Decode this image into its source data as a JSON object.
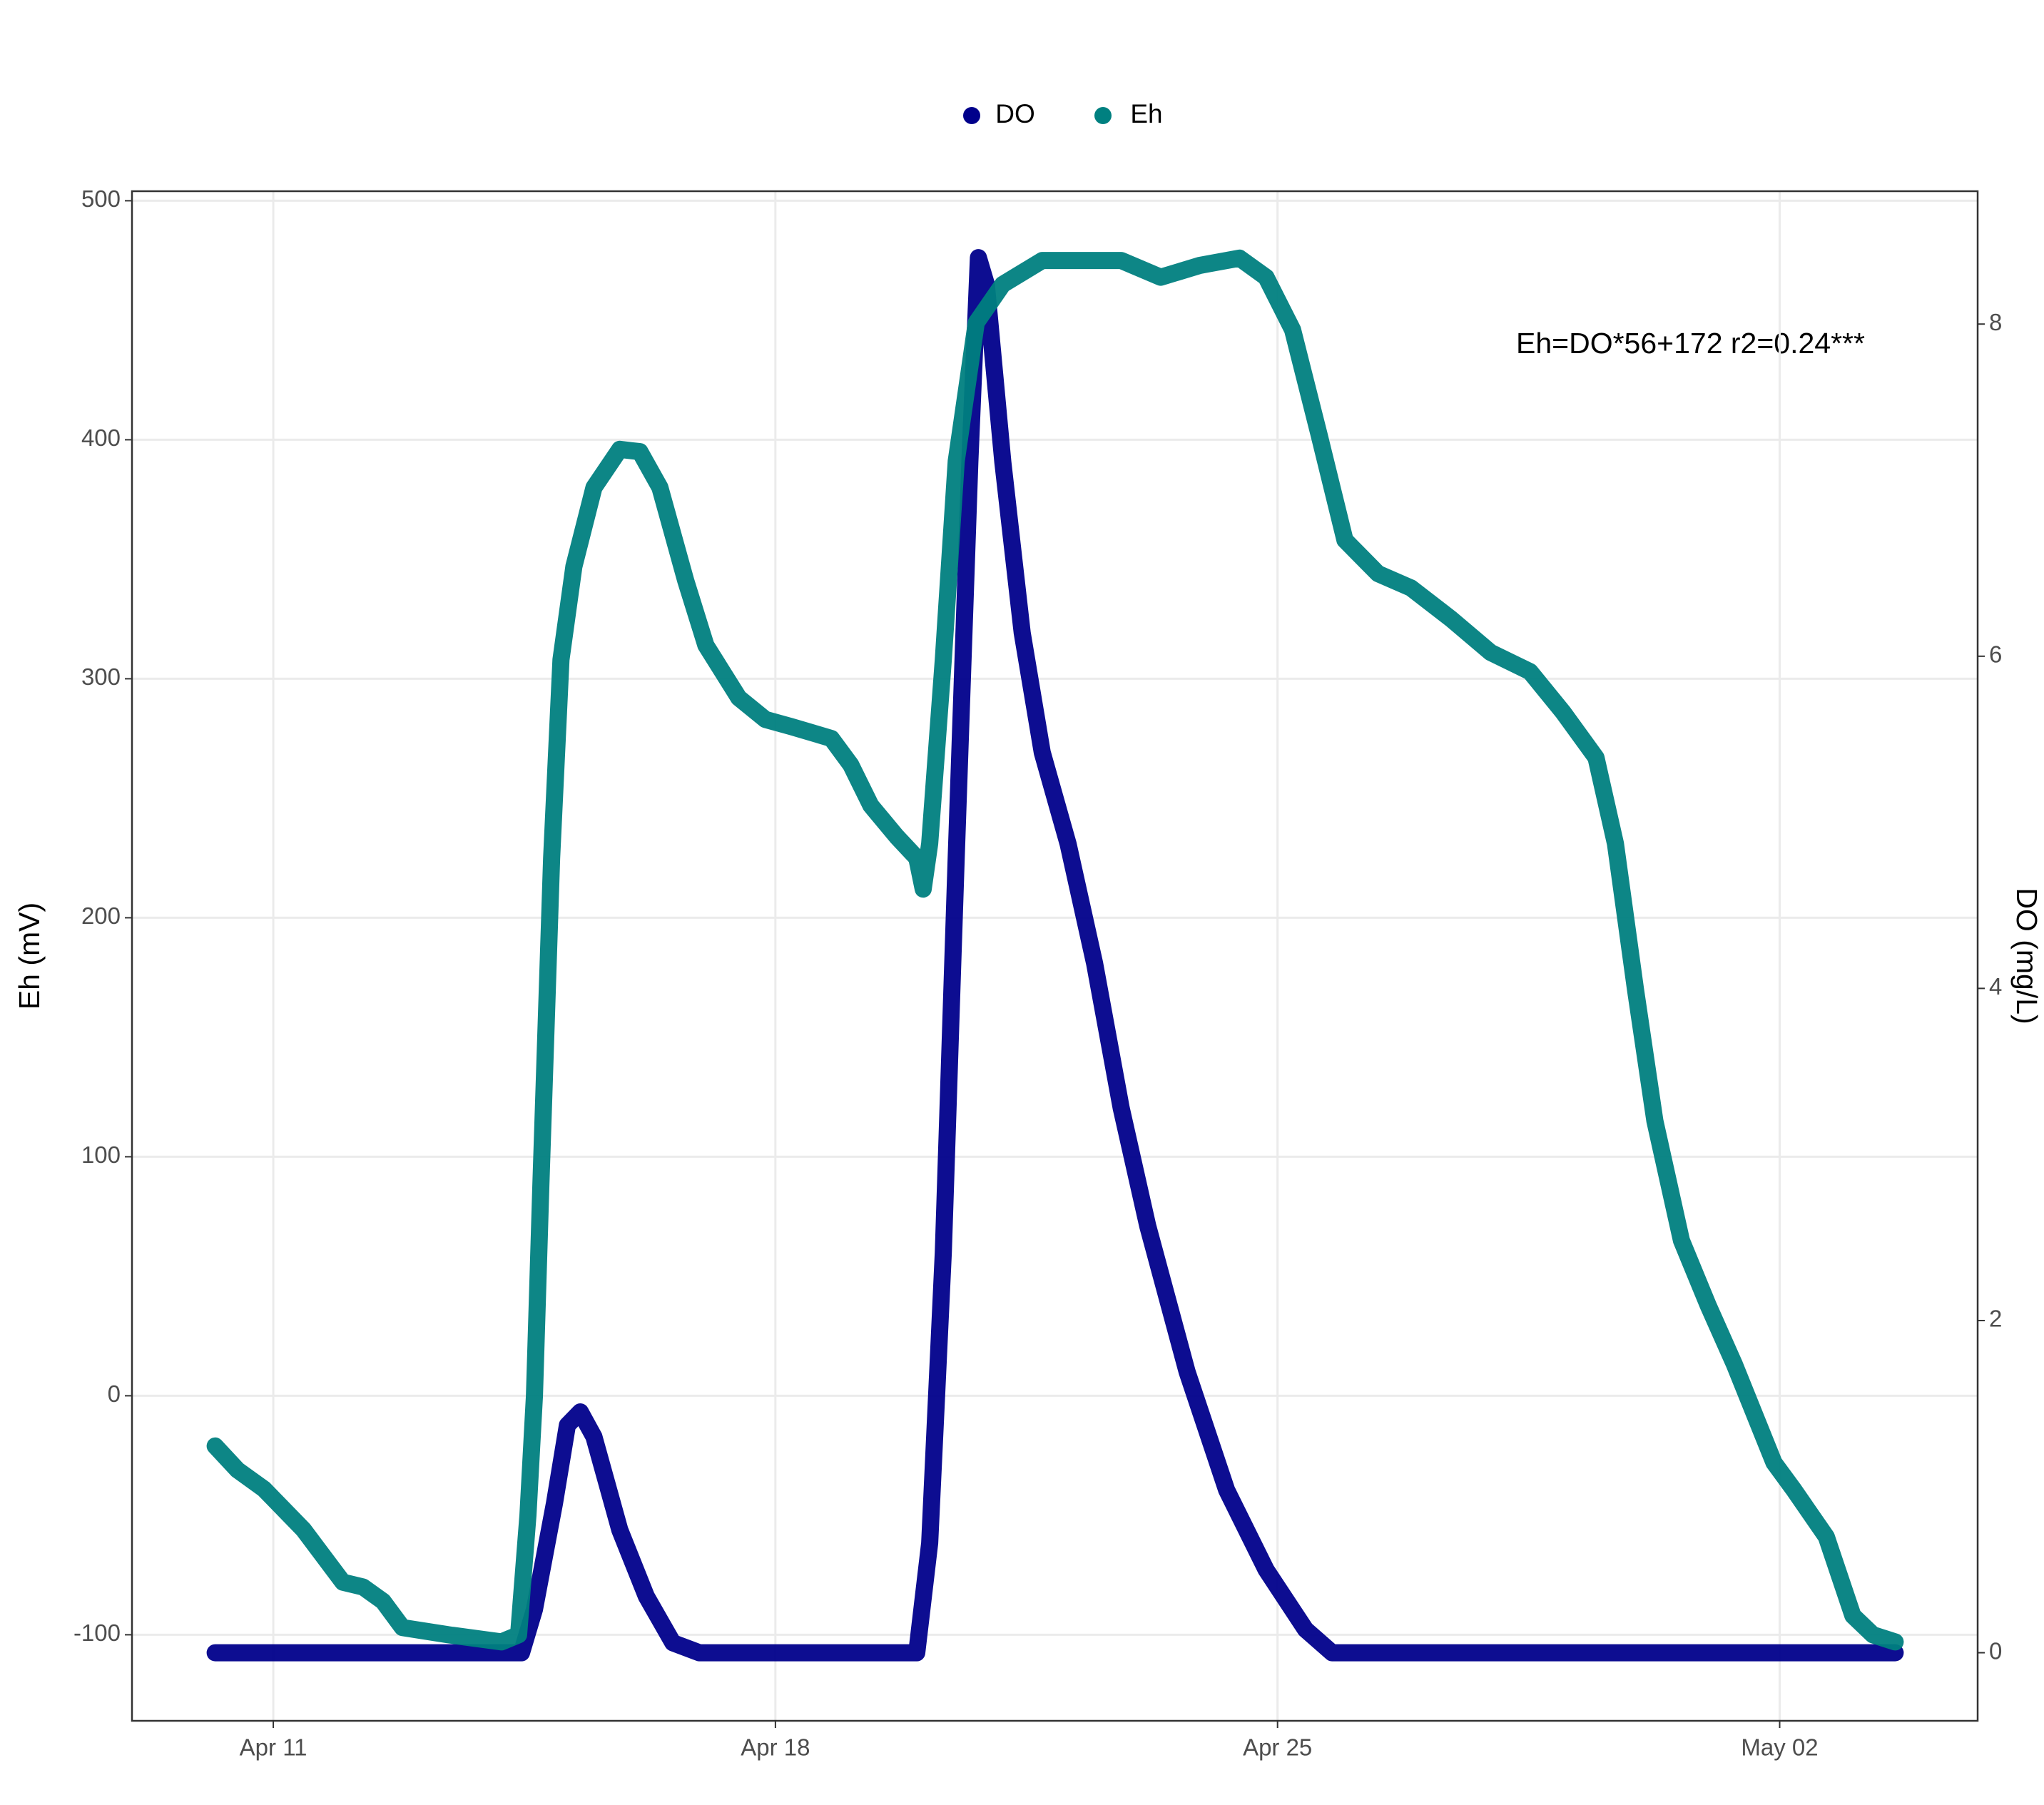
{
  "chart_data": {
    "type": "line",
    "annotation": "Eh=DO*56+172 r2=0.24***",
    "y_label": "Eh (mV)",
    "y2_label": "DO (mg/L)",
    "xlim": [
      9.03,
      34.76
    ],
    "xticks": [
      {
        "value": 11,
        "label": "Apr 11"
      },
      {
        "value": 18,
        "label": "Apr 18"
      },
      {
        "value": 25,
        "label": "Apr 25"
      },
      {
        "value": 32,
        "label": "May 02"
      }
    ],
    "ylim": [
      -136,
      504
    ],
    "yticks": [
      -100,
      0,
      100,
      200,
      300,
      400,
      500
    ],
    "y2lim": [
      -0.41,
      8.8
    ],
    "y2ticks": [
      0,
      2,
      4,
      6,
      8
    ],
    "grid": true,
    "legend": "top",
    "series": [
      {
        "name": "DO",
        "color": "#00008b",
        "axis": "y2",
        "x": [
          10.19,
          14.46,
          14.64,
          14.92,
          15.1,
          15.28,
          15.47,
          15.83,
          16.2,
          16.57,
          16.94,
          19.97,
          20.15,
          20.34,
          20.52,
          20.71,
          20.83,
          20.94,
          21.17,
          21.44,
          21.72,
          22.08,
          22.45,
          22.82,
          23.19,
          23.74,
          24.29,
          24.84,
          25.39,
          25.76,
          33.61
        ],
        "values": [
          0,
          0,
          0.26,
          0.9,
          1.37,
          1.45,
          1.3,
          0.74,
          0.34,
          0.06,
          0,
          0,
          0.66,
          2.41,
          4.79,
          7.17,
          8.4,
          8.24,
          7.17,
          6.14,
          5.42,
          4.87,
          4.15,
          3.28,
          2.57,
          1.69,
          0.98,
          0.5,
          0.14,
          0,
          0
        ]
      },
      {
        "name": "Eh",
        "color": "#008080",
        "x": [
          10.19,
          10.5,
          10.87,
          11.42,
          11.97,
          12.25,
          12.53,
          12.8,
          13.44,
          14.18,
          14.42,
          14.55,
          14.64,
          14.73,
          14.88,
          15.01,
          15.19,
          15.47,
          15.83,
          16.11,
          16.39,
          16.75,
          17.03,
          17.49,
          17.86,
          18.22,
          18.78,
          19.05,
          19.33,
          19.69,
          19.97,
          20.06,
          20.15,
          20.34,
          20.52,
          20.8,
          21.17,
          21.72,
          22.82,
          23.37,
          23.92,
          24.47,
          24.84,
          25.21,
          25.58,
          25.94,
          26.4,
          26.86,
          27.42,
          27.97,
          28.52,
          28.98,
          29.44,
          29.71,
          29.99,
          30.26,
          30.63,
          31.0,
          31.37,
          31.92,
          32.19,
          32.65,
          33.02,
          33.3,
          33.61
        ],
        "values": [
          -21,
          -31,
          -39,
          -56,
          -78,
          -80,
          -86,
          -97,
          -100,
          -103,
          -100,
          -50,
          0,
          88,
          225,
          308,
          347,
          380,
          396,
          395,
          380,
          341,
          314,
          292,
          283,
          280,
          275,
          264,
          247,
          234,
          225,
          212,
          231,
          308,
          391,
          449,
          465,
          475,
          475,
          468,
          473,
          476,
          468,
          446,
          402,
          358,
          344,
          338,
          325,
          311,
          303,
          286,
          267,
          231,
          170,
          115,
          65,
          38,
          13,
          -28,
          -39,
          -59,
          -92,
          -100,
          -103
        ]
      }
    ]
  }
}
